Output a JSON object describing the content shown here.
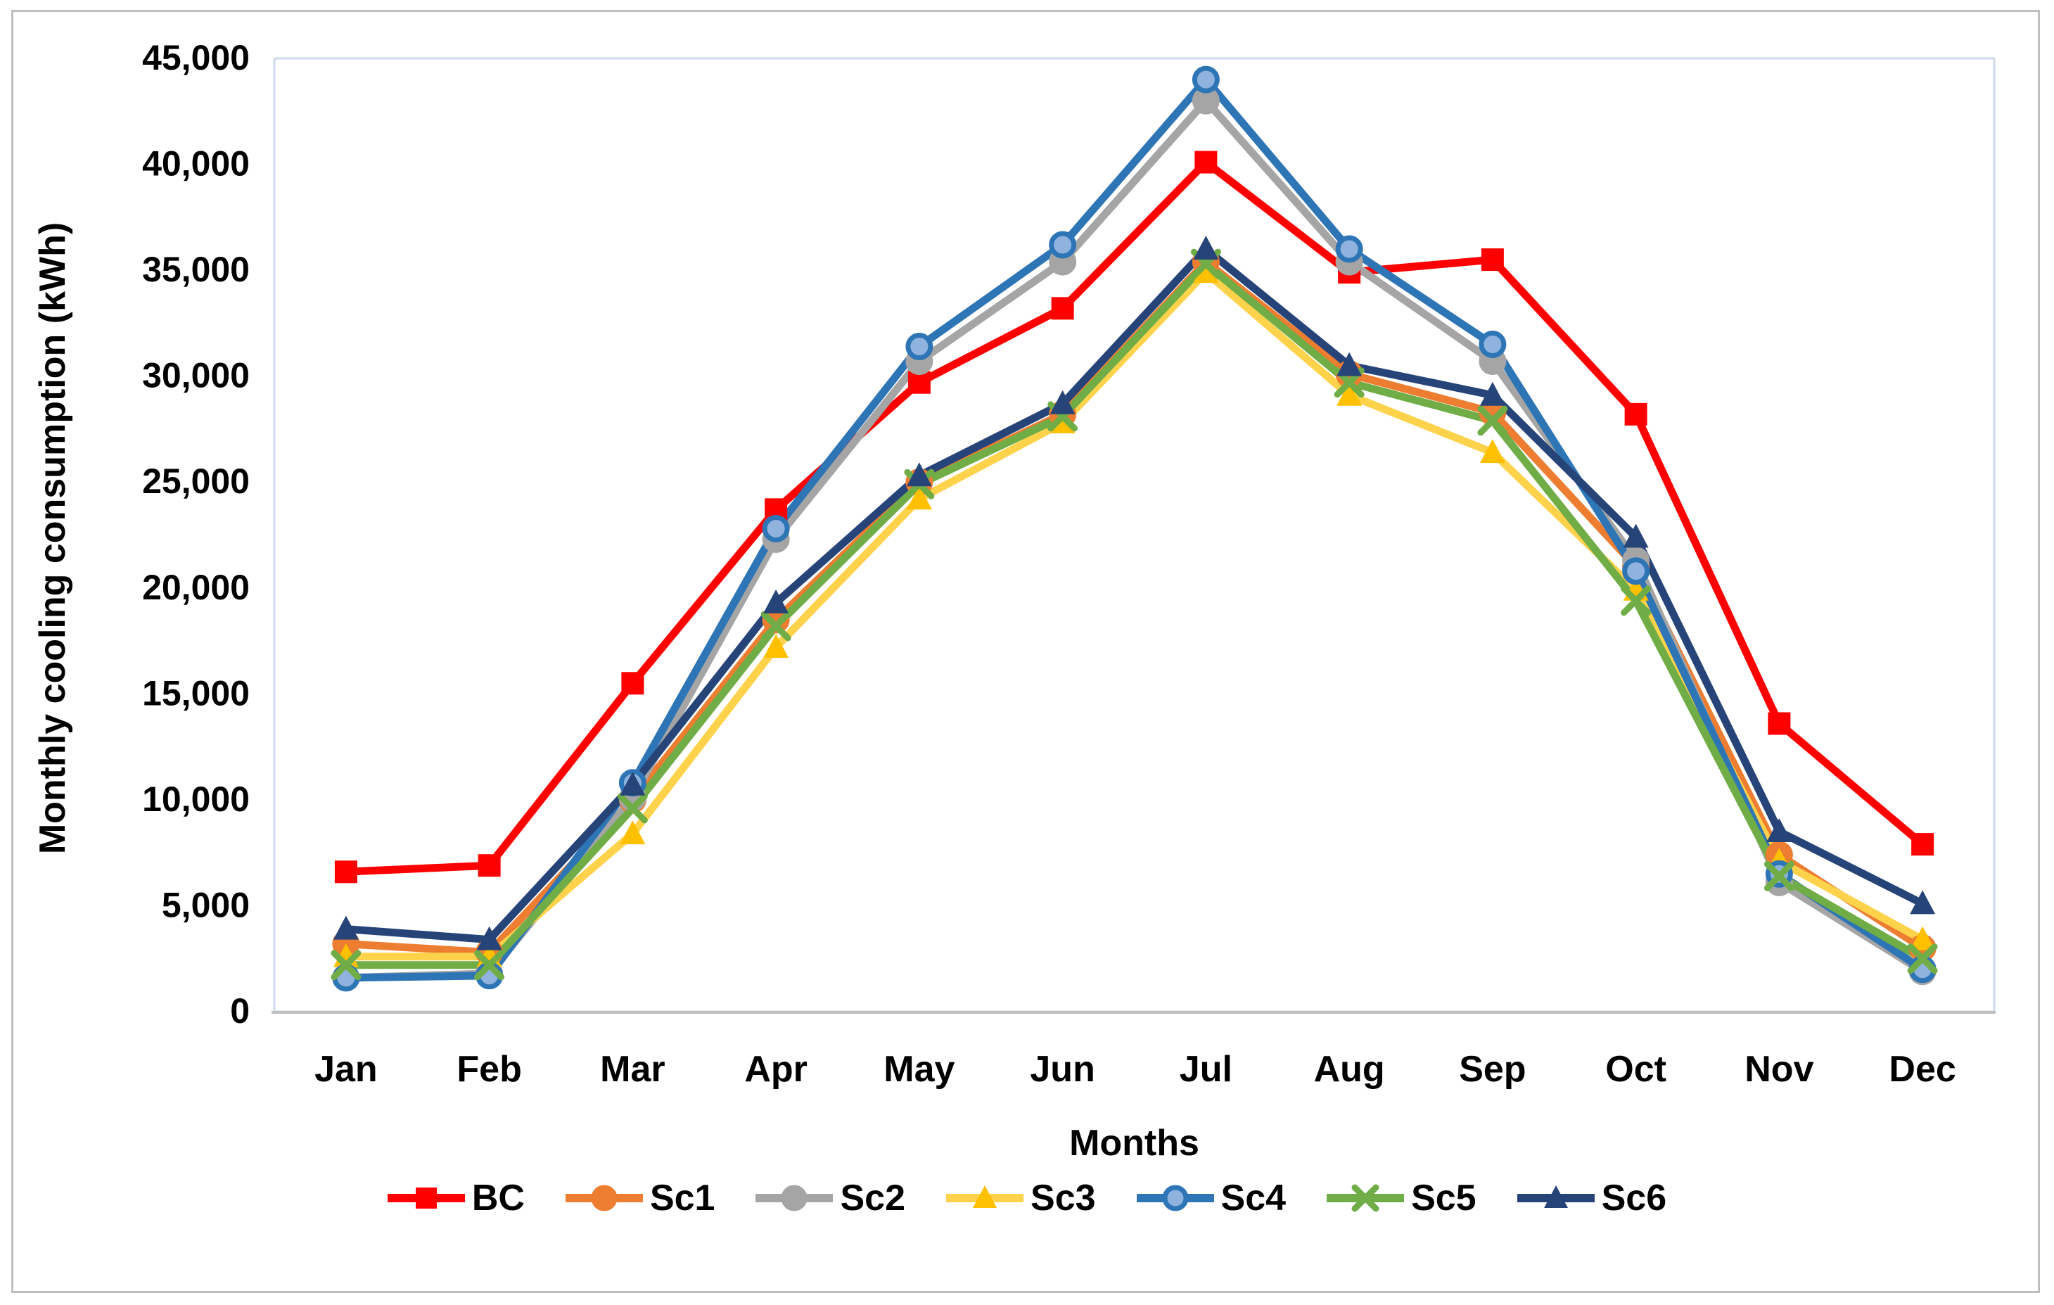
{
  "chart_data": {
    "type": "line",
    "title": "",
    "xlabel": "Months",
    "ylabel": "Monthly cooling consumption (kWh)",
    "ylim": [
      0,
      45000
    ],
    "grid": false,
    "legend_position": "bottom",
    "ytick_values": [
      45000,
      40000,
      35000,
      30000,
      25000,
      20000,
      15000,
      10000,
      5000,
      0
    ],
    "ytick_labels": [
      "45,000",
      "40,000",
      "35,000",
      "30,000",
      "25,000",
      "20,000",
      "15,000",
      "10,000",
      "5,000",
      "0"
    ],
    "categories": [
      "Jan",
      "Feb",
      "Mar",
      "Apr",
      "May",
      "Jun",
      "Jul",
      "Aug",
      "Sep",
      "Oct",
      "Nov",
      "Dec"
    ],
    "series": [
      {
        "name": "BC",
        "marker": "square",
        "line_color": "#FF0000",
        "marker_fill": "#FF0000",
        "marker_stroke": "#FF0000",
        "values": [
          6600,
          6900,
          15500,
          23700,
          29700,
          33200,
          40100,
          34900,
          35500,
          28200,
          13600,
          7900
        ]
      },
      {
        "name": "Sc1",
        "marker": "circle",
        "line_color": "#ED7D31",
        "marker_fill": "#ED7D31",
        "marker_stroke": "#ED7D31",
        "values": [
          3200,
          2800,
          10000,
          18500,
          25000,
          28200,
          35400,
          30100,
          28300,
          21000,
          7400,
          3000
        ]
      },
      {
        "name": "Sc2",
        "marker": "circle",
        "line_color": "#A5A5A5",
        "marker_fill": "#A5A5A5",
        "marker_stroke": "#A5A5A5",
        "values": [
          1600,
          1800,
          10100,
          22300,
          30700,
          35400,
          43000,
          35400,
          30700,
          21300,
          6100,
          1900
        ]
      },
      {
        "name": "Sc3",
        "marker": "triangle",
        "line_color": "#FFD24B",
        "marker_fill": "#FFC000",
        "marker_stroke": "#FFC000",
        "values": [
          2600,
          2600,
          8400,
          17200,
          24200,
          27800,
          34900,
          29100,
          26400,
          19900,
          7100,
          3400
        ]
      },
      {
        "name": "Sc4",
        "marker": "circle",
        "line_color": "#2E75B6",
        "marker_fill": "#8FB3DE",
        "marker_stroke": "#2E75B6",
        "values": [
          1600,
          1700,
          10800,
          22800,
          31400,
          36200,
          44000,
          36000,
          31500,
          20800,
          6500,
          2000
        ]
      },
      {
        "name": "Sc5",
        "marker": "x",
        "line_color": "#70AD47",
        "marker_fill": "#70AD47",
        "marker_stroke": "#70AD47",
        "values": [
          2200,
          2200,
          9600,
          18200,
          24900,
          28100,
          35300,
          29700,
          27900,
          19400,
          6400,
          2500
        ]
      },
      {
        "name": "Sc6",
        "marker": "triangle",
        "line_color": "#264478",
        "marker_fill": "#264478",
        "marker_stroke": "#264478",
        "values": [
          3900,
          3400,
          10700,
          19300,
          25300,
          28700,
          36000,
          30500,
          29100,
          22400,
          8500,
          5100
        ]
      }
    ],
    "plot_border_color": "#CDD9EC",
    "axis_line_color": "#BFBFBF",
    "tick_label_color": "#000000"
  }
}
